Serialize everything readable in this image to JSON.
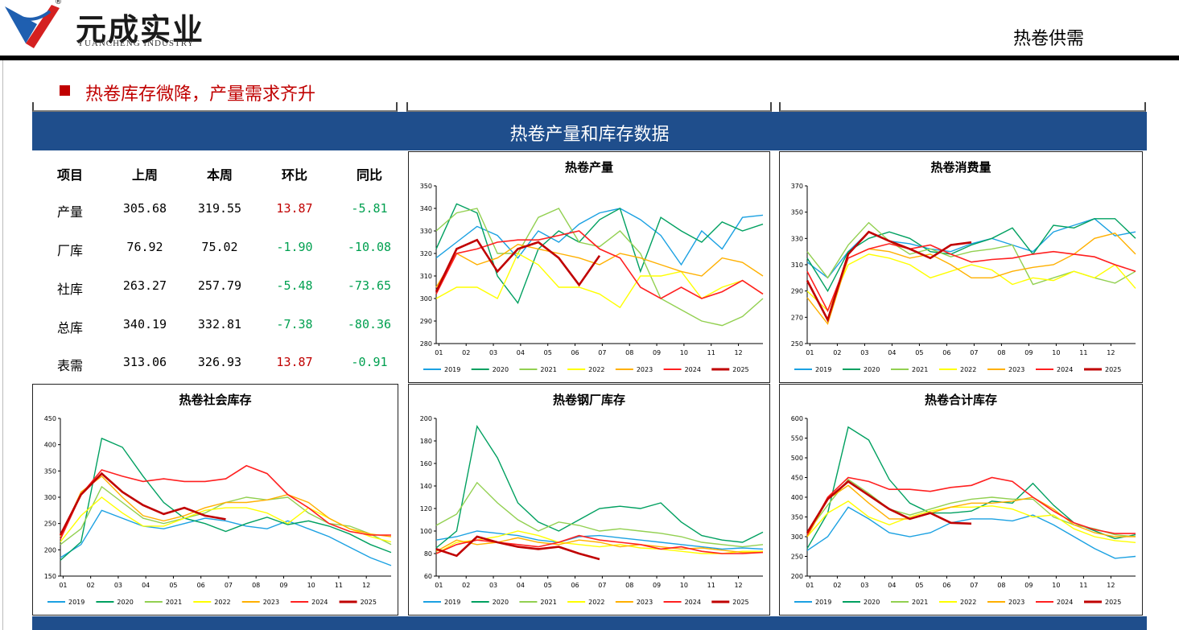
{
  "header": {
    "brand_cn": "元成实业",
    "brand_en": "YUANCHENG INDUSTRY",
    "registered": "®",
    "page_title": "热卷供需"
  },
  "section": {
    "title": "热卷库存微降，产量需求齐升"
  },
  "banner": {
    "title": "热卷产量和库存数据"
  },
  "table": {
    "headers": [
      "项目",
      "上周",
      "本周",
      "环比",
      "同比"
    ],
    "rows": [
      [
        "产量",
        "305.68",
        "319.55",
        "13.87",
        "-5.81"
      ],
      [
        "厂库",
        "76.92",
        "75.02",
        "-1.90",
        "-10.08"
      ],
      [
        "社库",
        "263.27",
        "257.79",
        "-5.48",
        "-73.65"
      ],
      [
        "总库",
        "340.19",
        "332.81",
        "-7.38",
        "-80.36"
      ],
      [
        "表需",
        "313.06",
        "326.93",
        "13.87",
        "-0.91"
      ]
    ],
    "colors": {
      "up": "#c00000",
      "down": "#00a050",
      "normal": "#000000"
    }
  },
  "legend_colors": {
    "2019": "#1ba1e2",
    "2020": "#00a060",
    "2021": "#92d050",
    "2022": "#ffff00",
    "2023": "#ffb000",
    "2024": "#ff2020",
    "2025": "#c00000"
  },
  "chart_data": [
    {
      "id": "production",
      "type": "line",
      "title": "热卷产量",
      "x_ticks": [
        "01",
        "02",
        "03",
        "04",
        "05",
        "06",
        "07",
        "08",
        "09",
        "10",
        "11",
        "12"
      ],
      "ylim": [
        280,
        350
      ],
      "yticks": [
        280,
        290,
        300,
        310,
        320,
        330,
        340,
        350
      ],
      "series": [
        {
          "name": "2019",
          "values": [
            318,
            325,
            332,
            328,
            318,
            330,
            325,
            333,
            338,
            340,
            335,
            328,
            315,
            330,
            322,
            336,
            337
          ]
        },
        {
          "name": "2020",
          "values": [
            322,
            342,
            338,
            310,
            298,
            322,
            330,
            325,
            335,
            340,
            312,
            336,
            330,
            325,
            334,
            330,
            333
          ]
        },
        {
          "name": "2021",
          "values": [
            330,
            338,
            340,
            320,
            320,
            336,
            340,
            325,
            323,
            330,
            320,
            300,
            295,
            290,
            288,
            292,
            300
          ]
        },
        {
          "name": "2022",
          "values": [
            300,
            305,
            305,
            300,
            320,
            315,
            305,
            305,
            302,
            296,
            310,
            310,
            312,
            300,
            305,
            308,
            302
          ]
        },
        {
          "name": "2023",
          "values": [
            305,
            320,
            315,
            318,
            324,
            322,
            320,
            318,
            315,
            320,
            318,
            315,
            312,
            310,
            318,
            316,
            310
          ]
        },
        {
          "name": "2024",
          "values": [
            302,
            320,
            322,
            325,
            326,
            326,
            328,
            330,
            322,
            318,
            305,
            300,
            305,
            300,
            303,
            308,
            302
          ]
        },
        {
          "name": "2025",
          "values": [
            303,
            322,
            326,
            312,
            322,
            325,
            318,
            306,
            319
          ]
        }
      ]
    },
    {
      "id": "consumption",
      "type": "line",
      "title": "热卷消费量",
      "x_ticks": [
        "01",
        "02",
        "03",
        "04",
        "05",
        "06",
        "07",
        "08",
        "09",
        "10",
        "11",
        "12"
      ],
      "ylim": [
        250,
        370
      ],
      "yticks": [
        250,
        270,
        290,
        310,
        330,
        350,
        370
      ],
      "series": [
        {
          "name": "2019",
          "values": [
            312,
            300,
            320,
            335,
            328,
            326,
            322,
            320,
            326,
            330,
            325,
            320,
            335,
            340,
            345,
            332,
            335
          ]
        },
        {
          "name": "2020",
          "values": [
            315,
            290,
            320,
            330,
            335,
            330,
            320,
            318,
            325,
            330,
            338,
            318,
            340,
            338,
            345,
            345,
            330
          ]
        },
        {
          "name": "2021",
          "values": [
            320,
            300,
            325,
            342,
            328,
            318,
            322,
            316,
            320,
            322,
            325,
            295,
            300,
            305,
            300,
            296,
            305
          ]
        },
        {
          "name": "2022",
          "values": [
            290,
            275,
            310,
            318,
            315,
            310,
            300,
            305,
            310,
            306,
            295,
            300,
            298,
            305,
            300,
            310,
            292
          ]
        },
        {
          "name": "2023",
          "values": [
            285,
            265,
            315,
            322,
            320,
            315,
            318,
            310,
            300,
            300,
            305,
            308,
            310,
            318,
            330,
            334,
            318
          ]
        },
        {
          "name": "2024",
          "values": [
            305,
            275,
            315,
            322,
            326,
            322,
            325,
            318,
            312,
            314,
            315,
            318,
            320,
            318,
            316,
            310,
            305
          ]
        },
        {
          "name": "2025",
          "values": [
            298,
            268,
            318,
            335,
            328,
            322,
            315,
            325,
            327
          ]
        }
      ]
    },
    {
      "id": "social_inventory",
      "type": "line",
      "title": "热卷社会库存",
      "x_ticks": [
        "01",
        "02",
        "03",
        "04",
        "05",
        "06",
        "07",
        "08",
        "09",
        "10",
        "11",
        "12"
      ],
      "ylim": [
        150,
        450
      ],
      "yticks": [
        150,
        200,
        250,
        300,
        350,
        400,
        450
      ],
      "series": [
        {
          "name": "2019",
          "values": [
            185,
            210,
            275,
            260,
            245,
            240,
            250,
            260,
            255,
            245,
            240,
            255,
            240,
            225,
            205,
            185,
            170
          ]
        },
        {
          "name": "2020",
          "values": [
            180,
            215,
            412,
            395,
            340,
            290,
            260,
            250,
            235,
            250,
            262,
            248,
            255,
            245,
            230,
            210,
            195
          ]
        },
        {
          "name": "2021",
          "values": [
            210,
            240,
            320,
            290,
            260,
            250,
            260,
            270,
            290,
            300,
            295,
            300,
            270,
            250,
            245,
            230,
            210
          ]
        },
        {
          "name": "2022",
          "values": [
            215,
            265,
            300,
            270,
            245,
            245,
            260,
            275,
            280,
            280,
            270,
            250,
            280,
            260,
            240,
            225,
            215
          ]
        },
        {
          "name": "2023",
          "values": [
            225,
            310,
            340,
            300,
            265,
            255,
            265,
            280,
            290,
            290,
            295,
            305,
            290,
            260,
            240,
            230,
            225
          ]
        },
        {
          "name": "2024",
          "values": [
            220,
            305,
            352,
            340,
            330,
            335,
            330,
            330,
            335,
            360,
            345,
            305,
            280,
            250,
            235,
            228,
            228
          ]
        },
        {
          "name": "2025",
          "values": [
            228,
            305,
            345,
            310,
            285,
            268,
            280,
            265,
            258
          ]
        }
      ]
    },
    {
      "id": "mill_inventory",
      "type": "line",
      "title": "热卷钢厂库存",
      "x_ticks": [
        "01",
        "02",
        "03",
        "04",
        "05",
        "06",
        "07",
        "08",
        "09",
        "10",
        "11",
        "12"
      ],
      "ylim": [
        60,
        200
      ],
      "yticks": [
        60,
        80,
        100,
        120,
        140,
        160,
        180,
        200
      ],
      "series": [
        {
          "name": "2019",
          "values": [
            92,
            95,
            100,
            98,
            96,
            92,
            90,
            95,
            96,
            94,
            92,
            90,
            88,
            86,
            84,
            85,
            84
          ]
        },
        {
          "name": "2020",
          "values": [
            85,
            100,
            193,
            165,
            125,
            108,
            100,
            110,
            120,
            122,
            120,
            125,
            108,
            96,
            92,
            90,
            99
          ]
        },
        {
          "name": "2021",
          "values": [
            105,
            115,
            143,
            125,
            110,
            100,
            108,
            105,
            100,
            102,
            100,
            98,
            95,
            90,
            88,
            86,
            88
          ]
        },
        {
          "name": "2022",
          "values": [
            80,
            90,
            92,
            95,
            100,
            96,
            90,
            88,
            86,
            88,
            85,
            84,
            82,
            80,
            80,
            82,
            82
          ]
        },
        {
          "name": "2023",
          "values": [
            82,
            92,
            88,
            90,
            94,
            90,
            88,
            92,
            90,
            86,
            88,
            86,
            84,
            85,
            83,
            81,
            81
          ]
        },
        {
          "name": "2024",
          "values": [
            80,
            88,
            92,
            90,
            88,
            86,
            90,
            96,
            92,
            90,
            88,
            84,
            86,
            82,
            80,
            80,
            81
          ]
        },
        {
          "name": "2025",
          "values": [
            84,
            78,
            95,
            90,
            86,
            84,
            86,
            80,
            75
          ]
        }
      ]
    },
    {
      "id": "total_inventory",
      "type": "line",
      "title": "热卷合计库存",
      "x_ticks": [
        "01",
        "02",
        "03",
        "04",
        "05",
        "06",
        "07",
        "08",
        "09",
        "10",
        "11",
        "12"
      ],
      "ylim": [
        200,
        600
      ],
      "yticks": [
        200,
        250,
        300,
        350,
        400,
        450,
        500,
        550,
        600
      ],
      "series": [
        {
          "name": "2019",
          "values": [
            265,
            300,
            375,
            345,
            310,
            300,
            310,
            335,
            345,
            345,
            340,
            355,
            330,
            300,
            270,
            245,
            250
          ]
        },
        {
          "name": "2020",
          "values": [
            270,
            360,
            578,
            545,
            445,
            385,
            360,
            360,
            365,
            390,
            385,
            435,
            380,
            335,
            315,
            295,
            305
          ]
        },
        {
          "name": "2021",
          "values": [
            310,
            380,
            445,
            410,
            370,
            355,
            370,
            385,
            395,
            400,
            395,
            395,
            350,
            330,
            320,
            305,
            300
          ]
        },
        {
          "name": "2022",
          "values": [
            300,
            360,
            390,
            350,
            330,
            350,
            365,
            375,
            375,
            378,
            370,
            350,
            355,
            320,
            300,
            290,
            285
          ]
        },
        {
          "name": "2023",
          "values": [
            300,
            395,
            430,
            385,
            345,
            345,
            360,
            375,
            385,
            385,
            390,
            400,
            370,
            330,
            310,
            300,
            300
          ]
        },
        {
          "name": "2024",
          "values": [
            305,
            400,
            450,
            440,
            420,
            420,
            415,
            425,
            430,
            450,
            440,
            400,
            365,
            335,
            318,
            308,
            308
          ]
        },
        {
          "name": "2025",
          "values": [
            310,
            395,
            440,
            405,
            370,
            345,
            360,
            335,
            333
          ]
        }
      ]
    }
  ]
}
